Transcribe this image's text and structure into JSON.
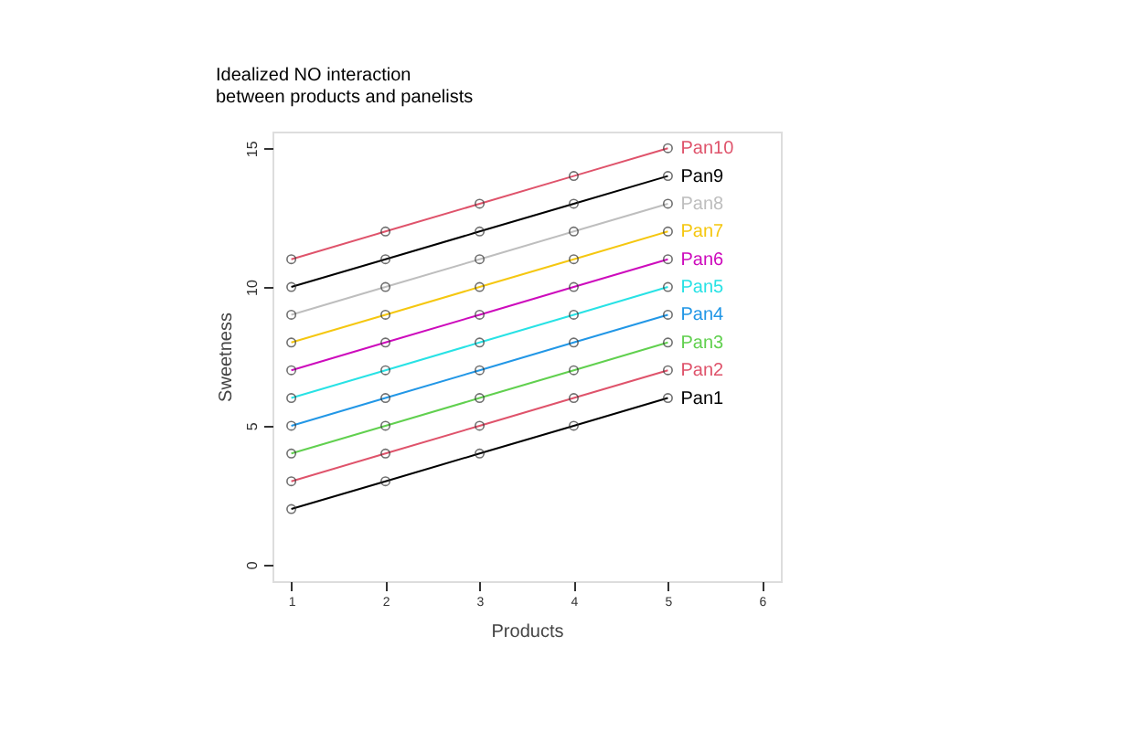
{
  "chart_data": {
    "type": "line",
    "title": "Idealized NO interaction\nbetween products and panelists",
    "xlabel": "Products",
    "ylabel": "Sweetness",
    "x": [
      1,
      2,
      3,
      4,
      5
    ],
    "series": [
      {
        "name": "Pan1",
        "color": "#000000",
        "values": [
          2,
          3,
          4,
          5,
          6
        ]
      },
      {
        "name": "Pan2",
        "color": "#df536b",
        "values": [
          3,
          4,
          5,
          6,
          7
        ]
      },
      {
        "name": "Pan3",
        "color": "#61d04f",
        "values": [
          4,
          5,
          6,
          7,
          8
        ]
      },
      {
        "name": "Pan4",
        "color": "#2297e6",
        "values": [
          5,
          6,
          7,
          8,
          9
        ]
      },
      {
        "name": "Pan5",
        "color": "#28e2e5",
        "values": [
          6,
          7,
          8,
          9,
          10
        ]
      },
      {
        "name": "Pan6",
        "color": "#cd0bbc",
        "values": [
          7,
          8,
          9,
          10,
          11
        ]
      },
      {
        "name": "Pan7",
        "color": "#f5c710",
        "values": [
          8,
          9,
          10,
          11,
          12
        ]
      },
      {
        "name": "Pan8",
        "color": "#bebebe",
        "values": [
          9,
          10,
          11,
          12,
          13
        ]
      },
      {
        "name": "Pan9",
        "color": "#000000",
        "values": [
          10,
          11,
          12,
          13,
          14
        ]
      },
      {
        "name": "Pan10",
        "color": "#df536b",
        "values": [
          11,
          12,
          13,
          14,
          15
        ]
      }
    ],
    "xlim": [
      0.8,
      6.2
    ],
    "xticks": [
      1,
      2,
      3,
      4,
      5,
      6
    ],
    "ylim": [
      -0.6,
      15.6
    ],
    "yticks": [
      0,
      5,
      10,
      15
    ],
    "grid": false,
    "legend": false,
    "marker": "circle",
    "line_style": "solid"
  }
}
